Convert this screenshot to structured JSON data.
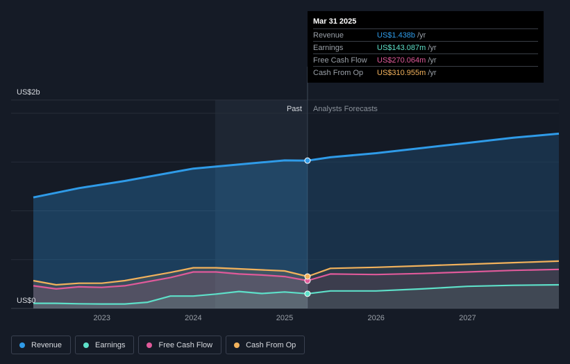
{
  "tooltip": {
    "date": "Mar 31 2025",
    "rows": [
      {
        "label": "Revenue",
        "value": "US$1.438b",
        "unit": "/yr",
        "color": "#2f9be8"
      },
      {
        "label": "Earnings",
        "value": "US$143.087m",
        "unit": "/yr",
        "color": "#5ee0c9"
      },
      {
        "label": "Free Cash Flow",
        "value": "US$270.064m",
        "unit": "/yr",
        "color": "#e05a9a"
      },
      {
        "label": "Cash From Op",
        "value": "US$310.955m",
        "unit": "/yr",
        "color": "#f2b25c"
      }
    ]
  },
  "labels": {
    "past": "Past",
    "forecast": "Analysts Forecasts"
  },
  "legend": [
    {
      "label": "Revenue",
      "color": "#2f9be8"
    },
    {
      "label": "Earnings",
      "color": "#5ee0c9"
    },
    {
      "label": "Free Cash Flow",
      "color": "#e05a9a"
    },
    {
      "label": "Cash From Op",
      "color": "#f2b25c"
    }
  ],
  "chart_data": {
    "type": "line",
    "title": "",
    "xlabel": "",
    "ylabel": "",
    "x_ticks": [
      "2023",
      "2024",
      "2025",
      "2026",
      "2027"
    ],
    "y_ticks": [
      {
        "label": "US$0",
        "value": 0
      },
      {
        "label": "US$2b",
        "value": 2
      }
    ],
    "ylim": [
      0,
      2
    ],
    "xlim": [
      2022.25,
      2028.0
    ],
    "units": "US$ billions",
    "past_end": 2025.25,
    "series": [
      {
        "name": "Revenue",
        "color": "#2f9be8",
        "x": [
          2022.25,
          2022.75,
          2023.25,
          2023.75,
          2024.0,
          2024.5,
          2024.75,
          2025.0,
          2025.25,
          2025.5,
          2026.0,
          2026.5,
          2027.0,
          2027.5,
          2028.0
        ],
        "y": [
          1.08,
          1.17,
          1.24,
          1.32,
          1.36,
          1.4,
          1.42,
          1.44,
          1.438,
          1.47,
          1.51,
          1.56,
          1.61,
          1.66,
          1.7
        ]
      },
      {
        "name": "Earnings",
        "color": "#5ee0c9",
        "x": [
          2022.25,
          2022.5,
          2022.75,
          2023.0,
          2023.25,
          2023.5,
          2023.75,
          2024.0,
          2024.25,
          2024.5,
          2024.75,
          2025.0,
          2025.25,
          2025.5,
          2026.0,
          2026.5,
          2027.0,
          2027.5,
          2028.0
        ],
        "y": [
          0.05,
          0.05,
          0.045,
          0.043,
          0.043,
          0.06,
          0.12,
          0.12,
          0.14,
          0.165,
          0.145,
          0.16,
          0.143,
          0.17,
          0.17,
          0.19,
          0.215,
          0.225,
          0.23
        ]
      },
      {
        "name": "Free Cash Flow",
        "color": "#e05a9a",
        "x": [
          2022.25,
          2022.5,
          2022.75,
          2023.0,
          2023.25,
          2023.5,
          2023.75,
          2024.0,
          2024.25,
          2024.5,
          2024.75,
          2025.0,
          2025.25,
          2025.5,
          2026.0,
          2026.5,
          2027.0,
          2027.5,
          2028.0
        ],
        "y": [
          0.22,
          0.19,
          0.21,
          0.205,
          0.22,
          0.26,
          0.3,
          0.355,
          0.355,
          0.335,
          0.325,
          0.31,
          0.27,
          0.335,
          0.33,
          0.34,
          0.355,
          0.37,
          0.38
        ]
      },
      {
        "name": "Cash From Op",
        "color": "#f2b25c",
        "x": [
          2022.25,
          2022.5,
          2022.75,
          2023.0,
          2023.25,
          2023.5,
          2023.75,
          2024.0,
          2024.25,
          2024.5,
          2024.75,
          2025.0,
          2025.25,
          2025.5,
          2026.0,
          2026.5,
          2027.0,
          2027.5,
          2028.0
        ],
        "y": [
          0.27,
          0.23,
          0.245,
          0.245,
          0.27,
          0.31,
          0.35,
          0.395,
          0.395,
          0.385,
          0.375,
          0.365,
          0.311,
          0.39,
          0.4,
          0.415,
          0.43,
          0.445,
          0.46
        ]
      }
    ]
  }
}
